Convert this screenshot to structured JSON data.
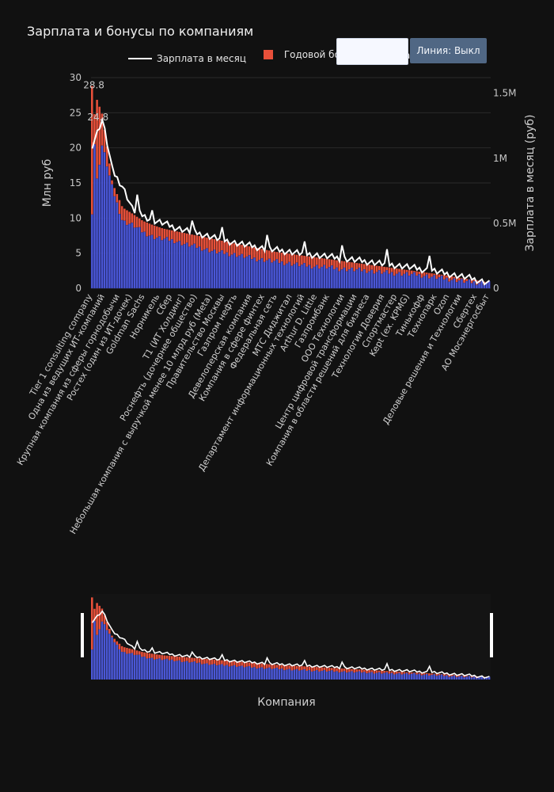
{
  "title": "Зарплата и бонусы по компаниям",
  "legend": {
    "line_label": "Зарплата в месяц",
    "bar_label_visible": "Годовой бону",
    "bar_tail_visible": "а"
  },
  "toggle_button": {
    "label": "Линия: Выкл"
  },
  "colors": {
    "background": "#111111",
    "bar_base": "#4a57d6",
    "bar_bonus": "#e8503a",
    "line": "#ffffff",
    "grid": "#2a2a2a",
    "button": "#506784"
  },
  "chart_data": {
    "type": "bar",
    "title": "Зарплата и бонусы по компаниям",
    "xlabel": "Компания",
    "ylabel": "Млн руб",
    "y2label": "Зарплата в месяц (руб)",
    "ylim": [
      0,
      30
    ],
    "y_ticks": [
      "0",
      "5",
      "10",
      "15",
      "20",
      "25",
      "30"
    ],
    "y2_ticks": [
      "0",
      "0.5M",
      "1M",
      "1.5M"
    ],
    "y2lim": [
      0,
      1620000
    ],
    "first_bar_label": "28.8",
    "second_bar_label": "24.8",
    "n_bars": 160,
    "base_anchor_values": [
      10.5,
      20.5,
      14.2,
      9.5,
      9,
      8,
      7.3,
      7,
      6.8,
      6.3,
      6,
      5.6,
      5.2,
      5,
      4.8,
      4.5,
      4.2,
      4,
      3.8,
      3.6,
      3.4,
      3.2,
      3.1,
      3,
      2.8,
      2.7,
      2.6,
      2.5,
      2.3,
      2.2,
      2.1,
      2,
      1.9,
      1.7,
      1.5,
      1.3,
      1.1,
      0.9,
      0.8,
      0.7
    ],
    "total_anchor_values": [
      28.8,
      24.8,
      15,
      11.5,
      10.6,
      9.6,
      9,
      8.5,
      8.2,
      7.9,
      7.6,
      7.3,
      7,
      6.7,
      6.4,
      6.1,
      5.8,
      5.5,
      5.2,
      5,
      4.8,
      4.6,
      4.4,
      4.2,
      4,
      3.8,
      3.6,
      3.4,
      3.2,
      3,
      2.8,
      2.6,
      2.4,
      2.2,
      2,
      1.8,
      1.5,
      1.3,
      1.1,
      0.8
    ],
    "line_anchor_values": [
      1100000,
      1300000,
      900000,
      780000,
      600000,
      560000,
      520000,
      500000,
      470000,
      450000,
      430000,
      410000,
      390000,
      370000,
      350000,
      335000,
      320000,
      305000,
      295000,
      285000,
      275000,
      265000,
      255000,
      245000,
      235000,
      225000,
      215000,
      205000,
      195000,
      185000,
      175000,
      165000,
      150000,
      140000,
      125000,
      110000,
      95000,
      80000,
      60000,
      40000
    ],
    "line_visible_spikes": [
      [
        18,
        720000
      ],
      [
        24,
        600000
      ],
      [
        40,
        520000
      ],
      [
        52,
        470000
      ],
      [
        70,
        410000
      ],
      [
        85,
        360000
      ],
      [
        100,
        330000
      ],
      [
        118,
        300000
      ],
      [
        135,
        250000
      ]
    ],
    "x_labels_visible": [
      "Tier 1 consulting company",
      "Одна из ведущих ИТ-компаний",
      "Крупная компания из сферы горнодобычи",
      "Ростех (один из ИТ-дочек)",
      "Goldman Sachs",
      "Норникель",
      "Сбер",
      "T1 (ИТ Холдинг)",
      "Роснефть (дочернее общество)",
      "Небольшая компания с выручкой менее 10 млрд руб (Meta)",
      "Правительство Москвы",
      "Газпром нефть",
      "Девелоперская компания",
      "Компания в сфере финтех",
      "Федеральная сеть",
      "МТС Диджитал",
      "Департамент информационных технологий",
      "Arthur D. Little",
      "Газпромбанк",
      "ООО Технологии",
      "Центр цифровой трансформации",
      "Компания в области решений для бизнеса",
      "Технологии Доверия",
      "Спортмастер",
      "Kept (ex. KPMG)",
      "Тинькофф",
      "Технопарк",
      "Ozon",
      "Деловые решения и Технологии",
      "Сбертех",
      "АО Мосэнергосбыт"
    ]
  }
}
